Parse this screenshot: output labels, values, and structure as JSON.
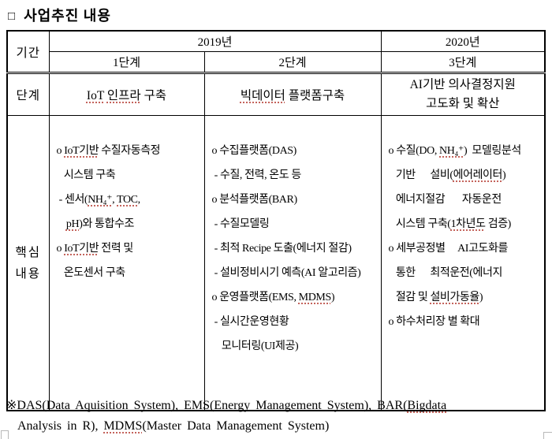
{
  "title": {
    "bullet": "□",
    "text": "사업추진 내용"
  },
  "table": {
    "corner_label": "기간",
    "year_headers": [
      "2019년",
      "2020년"
    ],
    "stage_headers": [
      "1단계",
      "2단계",
      "3단계"
    ],
    "stage_row_label": "단계",
    "stage_titles": {
      "stage1": "IoT 인프라 구축",
      "stage2": "빅데이터 플랫폼구축",
      "stage3_lines": [
        "AI기반 의사결정지원",
        "고도화 및 확산"
      ]
    },
    "content_row_label_lines": [
      "핵심",
      "내용"
    ],
    "content": {
      "stage1_lines": [
        "o IoT기반 수질자동측정",
        "   시스템 구축",
        " - 센서(NH₄⁺, TOC,",
        "    pH)와 통합수조",
        "o IoT기반 전력 및",
        "   온도센서 구축"
      ],
      "stage2_lines": [
        "o 수집플랫폼(DAS)",
        " - 수질, 전력, 온도 등",
        "o 분석플랫폼(BAR)",
        " - 수질모델링",
        " - 최적 Recipe 도출(에너지 절감)",
        " - 설비정비시기 예측(AI 알고리즘)",
        "o 운영플랫폼(EMS, MDMS)",
        " - 실시간운영현황",
        "    모니터링(UI제공)"
      ],
      "stage3_lines": [
        "o 수질(DO, NH₄⁺)  모델링분석",
        "   기반      설비(에어레이터)",
        "   에너지절감       자동운전",
        "   시스템 구축(1차년도 검증)",
        "o 세부공정별     AI고도화를",
        "   통한      최적운전(에너지",
        "   절감 및 설비가동율)",
        "o 하수처리장 별 확대"
      ]
    }
  },
  "footnote": {
    "lines": [
      "※DAS(Data Aquisition System), EMS(Energy Management System), BAR(Bigdata",
      "  Analysis in R), MDMS(Master Data Management System)"
    ]
  },
  "spellcheck_underlined_words": [
    "IoT기반",
    "에어레이터",
    "설비가동율",
    "빅데이터",
    "1차년도",
    "인프라",
    "NH₄⁺",
    "Bigdata",
    "MDMS",
    "IoT",
    "TOC",
    "pH"
  ],
  "colors": {
    "text": "#000000",
    "border": "#000000",
    "squiggle": "#c4645c",
    "corner_mark": "#b8b8b8"
  }
}
